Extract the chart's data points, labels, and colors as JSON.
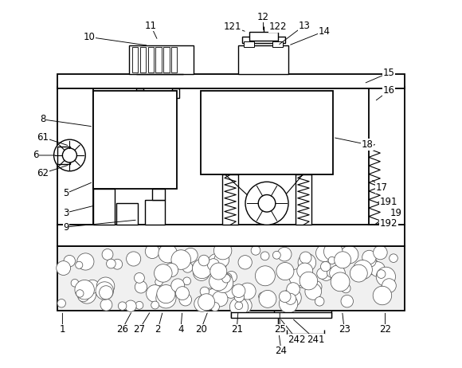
{
  "background_color": "#ffffff",
  "line_color": "#000000",
  "label_fontsize": 8.5,
  "fig_width": 5.8,
  "fig_height": 4.62,
  "dpi": 100
}
